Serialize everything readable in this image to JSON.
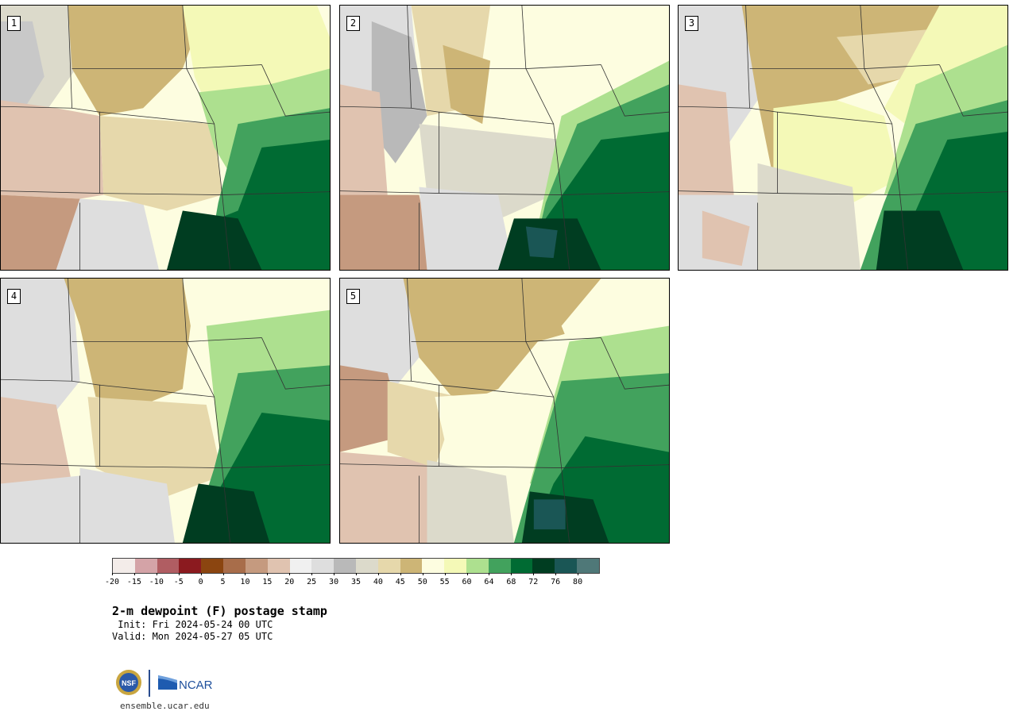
{
  "panels": [
    {
      "label": "1"
    },
    {
      "label": "2"
    },
    {
      "label": "3"
    },
    {
      "label": "4"
    },
    {
      "label": "5"
    }
  ],
  "colorbar": {
    "colors": [
      "#f3ece9",
      "#d4a3a7",
      "#b05d62",
      "#8b1a1f",
      "#8b4510",
      "#a86d4a",
      "#c59a7f",
      "#e0c3b0",
      "#f0f0f0",
      "#dedede",
      "#b9b9b9",
      "#dcdacb",
      "#e6d8ab",
      "#cdb576",
      "#fdfde0",
      "#f4f9b7",
      "#ade08f",
      "#42a25d",
      "#006b33",
      "#003d21",
      "#1a5655",
      "#4f7878"
    ],
    "ticks": [
      "-20",
      "-15",
      "-10",
      "-5",
      "0",
      "5",
      "10",
      "15",
      "20",
      "25",
      "30",
      "35",
      "40",
      "45",
      "50",
      "55",
      "60",
      "64",
      "68",
      "72",
      "76",
      "80"
    ]
  },
  "title": "2-m dewpoint (F) postage stamp",
  "init": " Init: Fri 2024-05-24 00 UTC",
  "valid": "Valid: Mon 2024-05-27 05 UTC",
  "logos": {
    "nsf": "NSF",
    "ncar": "NCAR"
  },
  "site": "ensemble.ucar.edu"
}
